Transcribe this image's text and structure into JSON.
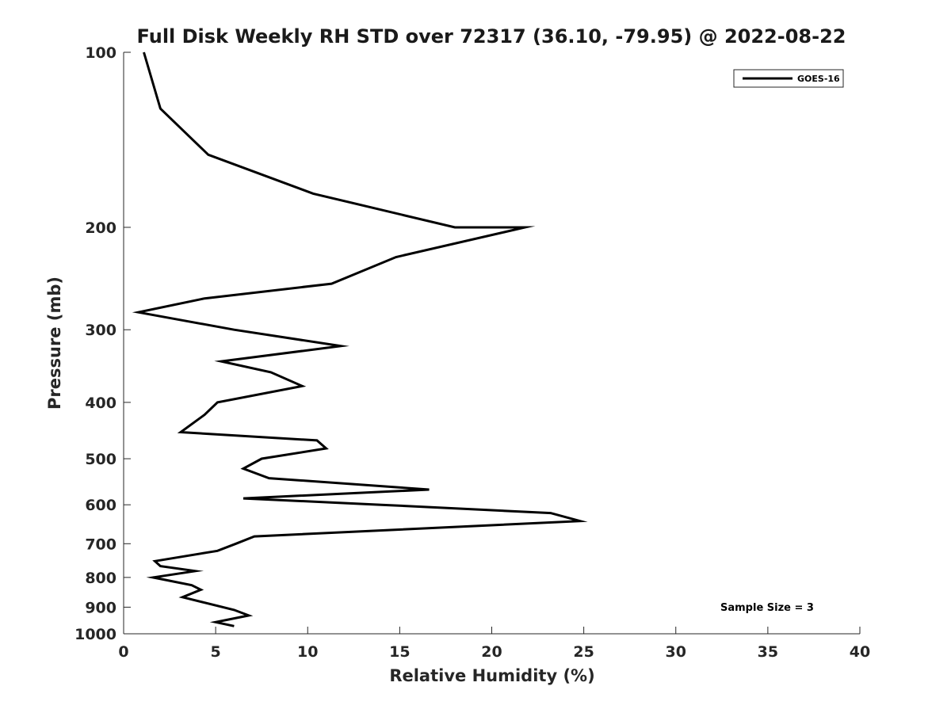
{
  "chart_data": {
    "type": "line",
    "title": "Full Disk Weekly RH STD over 72317 (36.10, -79.95) @ 2022-08-22",
    "xlabel": "Relative Humidity (%)",
    "ylabel": "Pressure (mb)",
    "xlim": [
      0,
      40
    ],
    "ylim": [
      100,
      1000
    ],
    "yscale": "log",
    "yaxis_reversed": true,
    "xticks": [
      0,
      5,
      10,
      15,
      20,
      25,
      30,
      35,
      40
    ],
    "yticks": [
      100,
      200,
      300,
      400,
      500,
      600,
      700,
      800,
      900,
      1000
    ],
    "grid": false,
    "legend": {
      "position": "top-right",
      "entries": [
        "GOES-16"
      ]
    },
    "annotation": "Sample Size = 3",
    "series": [
      {
        "name": "GOES-16",
        "color": "#000000",
        "points": [
          [
            1.1,
            100
          ],
          [
            2.0,
            125
          ],
          [
            4.6,
            150
          ],
          [
            10.3,
            175
          ],
          [
            18.0,
            200
          ],
          [
            21.8,
            200
          ],
          [
            14.8,
            225
          ],
          [
            11.3,
            250
          ],
          [
            4.4,
            265
          ],
          [
            0.8,
            280
          ],
          [
            6.0,
            300
          ],
          [
            11.8,
            320
          ],
          [
            5.3,
            340
          ],
          [
            8.0,
            355
          ],
          [
            9.7,
            375
          ],
          [
            5.1,
            400
          ],
          [
            4.4,
            420
          ],
          [
            3.1,
            450
          ],
          [
            10.5,
            465
          ],
          [
            11.0,
            480
          ],
          [
            7.5,
            500
          ],
          [
            6.5,
            520
          ],
          [
            7.9,
            540
          ],
          [
            16.6,
            565
          ],
          [
            6.5,
            585
          ],
          [
            14.0,
            600
          ],
          [
            23.2,
            620
          ],
          [
            24.8,
            640
          ],
          [
            7.1,
            680
          ],
          [
            6.1,
            700
          ],
          [
            5.1,
            720
          ],
          [
            1.7,
            750
          ],
          [
            2.0,
            765
          ],
          [
            3.9,
            780
          ],
          [
            1.6,
            800
          ],
          [
            3.7,
            825
          ],
          [
            4.2,
            840
          ],
          [
            3.2,
            865
          ],
          [
            6.0,
            910
          ],
          [
            6.8,
            930
          ],
          [
            5.0,
            955
          ],
          [
            6.0,
            970
          ]
        ]
      }
    ]
  }
}
